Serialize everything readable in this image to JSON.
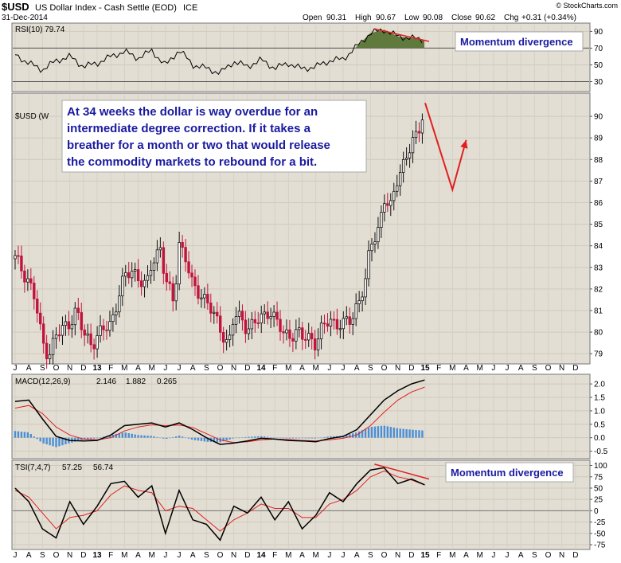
{
  "header": {
    "symbol": "$USD",
    "name": "US Dollar Index - Cash Settle (EOD)",
    "exchange": "ICE",
    "date": "31-Dec-2014",
    "open_label": "Open",
    "open": "90.31",
    "high_label": "High",
    "high": "90.67",
    "low_label": "Low",
    "low": "90.08",
    "close_label": "Close",
    "close": "90.62",
    "chg_label": "Chg",
    "chg": "+0.31 (+0.34%)",
    "brand": "© StockCharts.com"
  },
  "annotations": {
    "main_text": [
      "At 34 weeks the dollar is way overdue for an",
      "intermediate degree correction. If it takes a",
      "breather for a month or two that would release",
      "the commodity markets to rebound for a bit."
    ],
    "rsi_divergence": "Momentum divergence",
    "tsi_divergence": "Momentum divergence"
  },
  "colors": {
    "panel_bg": "#e3ded3",
    "up": "#111111",
    "down": "#c0143c",
    "accent_red": "#e02020",
    "macd_line": "#000000",
    "signal_line": "#e02020",
    "histogram": "#4a8fd6",
    "rsi_fill": "#5f7a3c",
    "annotation_text": "#1a1aa0"
  },
  "chart_data": [
    {
      "panel": "price",
      "type": "candlestick",
      "title": "$USD (Weekly)",
      "legend_label": "$USD (W",
      "frequency": "weekly",
      "x_start": "2012-07",
      "x_end": "2015-01",
      "ylim": [
        78.6,
        91.0
      ],
      "yticks": [
        "79",
        "80",
        "81",
        "82",
        "83",
        "84",
        "85",
        "86",
        "87",
        "88",
        "89",
        "90"
      ],
      "close_path": [
        [
          "2012-07",
          83.4
        ],
        [
          "2012-08",
          82.4
        ],
        [
          "2012-08-15",
          81.5
        ],
        [
          "2012-09",
          79.5
        ],
        [
          "2012-09-15",
          79.0
        ],
        [
          "2012-10",
          79.8
        ],
        [
          "2012-11",
          80.5
        ],
        [
          "2012-11-15",
          81.0
        ],
        [
          "2012-12",
          79.9
        ],
        [
          "2012-12-20",
          79.5
        ],
        [
          "2013-01",
          79.8
        ],
        [
          "2013-02",
          80.4
        ],
        [
          "2013-02-20",
          81.8
        ],
        [
          "2013-03",
          82.5
        ],
        [
          "2013-03-20",
          82.9
        ],
        [
          "2013-04",
          82.6
        ],
        [
          "2013-04-20",
          82.0
        ],
        [
          "2013-05",
          83.2
        ],
        [
          "2013-05-20",
          84.0
        ],
        [
          "2013-06",
          82.4
        ],
        [
          "2013-06-20",
          81.3
        ],
        [
          "2013-07",
          84.2
        ],
        [
          "2013-07-15",
          83.5
        ],
        [
          "2013-08",
          82.0
        ],
        [
          "2013-08-20",
          81.8
        ],
        [
          "2013-09",
          81.5
        ],
        [
          "2013-09-20",
          80.6
        ],
        [
          "2013-10",
          80.2
        ],
        [
          "2013-10-20",
          79.4
        ],
        [
          "2013-11",
          80.7
        ],
        [
          "2013-11-20",
          80.6
        ],
        [
          "2013-12",
          80.2
        ],
        [
          "2014-01",
          80.6
        ],
        [
          "2014-01-20",
          81.1
        ],
        [
          "2014-02",
          80.6
        ],
        [
          "2014-02-20",
          79.9
        ],
        [
          "2014-03",
          79.9
        ],
        [
          "2014-03-20",
          80.0
        ],
        [
          "2014-04",
          79.7
        ],
        [
          "2014-04-20",
          79.8
        ],
        [
          "2014-05",
          79.5
        ],
        [
          "2014-05-15",
          80.1
        ],
        [
          "2014-06",
          80.6
        ],
        [
          "2014-06-20",
          80.4
        ],
        [
          "2014-07",
          80.3
        ],
        [
          "2014-07-20",
          80.6
        ],
        [
          "2014-08",
          81.3
        ],
        [
          "2014-08-20",
          82.2
        ],
        [
          "2014-09",
          84.0
        ],
        [
          "2014-09-20",
          84.9
        ],
        [
          "2014-10",
          86.2
        ],
        [
          "2014-10-15",
          85.6
        ],
        [
          "2014-11",
          87.3
        ],
        [
          "2014-11-15",
          87.9
        ],
        [
          "2014-12",
          88.6
        ],
        [
          "2014-12-15",
          89.2
        ],
        [
          "2014-12-31",
          90.62
        ]
      ],
      "arrow_path": [
        [
          "2015-01",
          90.62
        ],
        [
          "2015-03",
          86.6
        ],
        [
          "2015-04",
          88.9
        ]
      ]
    },
    {
      "panel": "rsi",
      "type": "line",
      "label": "RSI(10) 79.74",
      "ylim": [
        20,
        98
      ],
      "yticks": [
        "90",
        "70",
        "50",
        "30"
      ],
      "levels": [
        70,
        30
      ],
      "values_path": [
        [
          "2012-07",
          62
        ],
        [
          "2012-08",
          52
        ],
        [
          "2012-09",
          44
        ],
        [
          "2012-10",
          55
        ],
        [
          "2012-11",
          60
        ],
        [
          "2012-12",
          48
        ],
        [
          "2013-01",
          52
        ],
        [
          "2013-02",
          60
        ],
        [
          "2013-03",
          66
        ],
        [
          "2013-04",
          58
        ],
        [
          "2013-05",
          67
        ],
        [
          "2013-06",
          49
        ],
        [
          "2013-07",
          68
        ],
        [
          "2013-08",
          50
        ],
        [
          "2013-09",
          46
        ],
        [
          "2013-10",
          40
        ],
        [
          "2013-11",
          54
        ],
        [
          "2013-12",
          48
        ],
        [
          "2014-01",
          56
        ],
        [
          "2014-02",
          46
        ],
        [
          "2014-03",
          52
        ],
        [
          "2014-04",
          45
        ],
        [
          "2014-05",
          48
        ],
        [
          "2014-06",
          55
        ],
        [
          "2014-07",
          57
        ],
        [
          "2014-08",
          72
        ],
        [
          "2014-09",
          88
        ],
        [
          "2014-10",
          92
        ],
        [
          "2014-11",
          84
        ],
        [
          "2014-12",
          82
        ],
        [
          "2014-12-31",
          79.74
        ]
      ]
    },
    {
      "panel": "macd",
      "type": "line",
      "label_prefix": "MACD(12,26,9)",
      "macd_value": "2.146",
      "signal_value": "1.882",
      "hist_value": "0.265",
      "ylim": [
        -0.72,
        2.3
      ],
      "yticks": [
        "2.0",
        "1.5",
        "1.0",
        "0.5",
        "0.0",
        "-0.5"
      ],
      "macd_path": [
        [
          "2012-07",
          1.35
        ],
        [
          "2012-08",
          1.4
        ],
        [
          "2012-09",
          0.7
        ],
        [
          "2012-10",
          0.05
        ],
        [
          "2012-11",
          -0.1
        ],
        [
          "2012-12",
          -0.12
        ],
        [
          "2013-01",
          -0.1
        ],
        [
          "2013-02",
          0.1
        ],
        [
          "2013-03",
          0.45
        ],
        [
          "2013-04",
          0.5
        ],
        [
          "2013-05",
          0.55
        ],
        [
          "2013-06",
          0.4
        ],
        [
          "2013-07",
          0.55
        ],
        [
          "2013-08",
          0.3
        ],
        [
          "2013-09",
          0.0
        ],
        [
          "2013-10",
          -0.25
        ],
        [
          "2013-11",
          -0.2
        ],
        [
          "2013-12",
          -0.12
        ],
        [
          "2014-01",
          -0.02
        ],
        [
          "2014-02",
          -0.05
        ],
        [
          "2014-03",
          -0.1
        ],
        [
          "2014-04",
          -0.12
        ],
        [
          "2014-05",
          -0.15
        ],
        [
          "2014-06",
          -0.03
        ],
        [
          "2014-07",
          0.05
        ],
        [
          "2014-08",
          0.3
        ],
        [
          "2014-09",
          0.85
        ],
        [
          "2014-10",
          1.4
        ],
        [
          "2014-11",
          1.75
        ],
        [
          "2014-12",
          2.0
        ],
        [
          "2014-12-31",
          2.146
        ]
      ],
      "signal_path": [
        [
          "2012-07",
          1.1
        ],
        [
          "2012-08",
          1.2
        ],
        [
          "2012-09",
          0.9
        ],
        [
          "2012-10",
          0.4
        ],
        [
          "2012-11",
          0.1
        ],
        [
          "2012-12",
          -0.05
        ],
        [
          "2013-01",
          -0.08
        ],
        [
          "2013-02",
          0.0
        ],
        [
          "2013-03",
          0.25
        ],
        [
          "2013-04",
          0.4
        ],
        [
          "2013-05",
          0.48
        ],
        [
          "2013-06",
          0.45
        ],
        [
          "2013-07",
          0.47
        ],
        [
          "2013-08",
          0.38
        ],
        [
          "2013-09",
          0.15
        ],
        [
          "2013-10",
          -0.08
        ],
        [
          "2013-11",
          -0.18
        ],
        [
          "2013-12",
          -0.15
        ],
        [
          "2014-01",
          -0.08
        ],
        [
          "2014-02",
          -0.05
        ],
        [
          "2014-03",
          -0.07
        ],
        [
          "2014-04",
          -0.1
        ],
        [
          "2014-05",
          -0.12
        ],
        [
          "2014-06",
          -0.08
        ],
        [
          "2014-07",
          -0.02
        ],
        [
          "2014-08",
          0.1
        ],
        [
          "2014-09",
          0.45
        ],
        [
          "2014-10",
          0.95
        ],
        [
          "2014-11",
          1.4
        ],
        [
          "2014-12",
          1.7
        ],
        [
          "2014-12-31",
          1.882
        ]
      ]
    },
    {
      "panel": "tsi",
      "type": "line",
      "label_prefix": "TSI(7,4,7)",
      "tsi_value": "57.25",
      "signal_value": "56.74",
      "ylim": [
        -82,
        108
      ],
      "yticks": [
        "100",
        "75",
        "50",
        "25",
        "0",
        "-25",
        "-50",
        "-75"
      ],
      "tsi_path": [
        [
          "2012-07",
          50
        ],
        [
          "2012-08",
          20
        ],
        [
          "2012-09",
          -40
        ],
        [
          "2012-10",
          -60
        ],
        [
          "2012-11",
          20
        ],
        [
          "2012-12",
          -30
        ],
        [
          "2013-01",
          10
        ],
        [
          "2013-02",
          60
        ],
        [
          "2013-03",
          65
        ],
        [
          "2013-04",
          30
        ],
        [
          "2013-05",
          55
        ],
        [
          "2013-06",
          -50
        ],
        [
          "2013-07",
          45
        ],
        [
          "2013-08",
          -20
        ],
        [
          "2013-09",
          -30
        ],
        [
          "2013-10",
          -65
        ],
        [
          "2013-11",
          10
        ],
        [
          "2013-12",
          -5
        ],
        [
          "2014-01",
          30
        ],
        [
          "2014-02",
          -20
        ],
        [
          "2014-03",
          20
        ],
        [
          "2014-04",
          -40
        ],
        [
          "2014-05",
          -10
        ],
        [
          "2014-06",
          40
        ],
        [
          "2014-07",
          20
        ],
        [
          "2014-08",
          60
        ],
        [
          "2014-09",
          90
        ],
        [
          "2014-10",
          95
        ],
        [
          "2014-11",
          60
        ],
        [
          "2014-12",
          70
        ],
        [
          "2014-12-31",
          57.25
        ]
      ],
      "signal_path": [
        [
          "2012-07",
          45
        ],
        [
          "2012-08",
          30
        ],
        [
          "2012-09",
          -5
        ],
        [
          "2012-10",
          -40
        ],
        [
          "2012-11",
          -15
        ],
        [
          "2012-12",
          -10
        ],
        [
          "2013-01",
          0
        ],
        [
          "2013-02",
          35
        ],
        [
          "2013-03",
          55
        ],
        [
          "2013-04",
          45
        ],
        [
          "2013-05",
          40
        ],
        [
          "2013-06",
          0
        ],
        [
          "2013-07",
          10
        ],
        [
          "2013-08",
          5
        ],
        [
          "2013-09",
          -20
        ],
        [
          "2013-10",
          -45
        ],
        [
          "2013-11",
          -20
        ],
        [
          "2013-12",
          -5
        ],
        [
          "2014-01",
          15
        ],
        [
          "2014-02",
          5
        ],
        [
          "2014-03",
          5
        ],
        [
          "2014-04",
          -15
        ],
        [
          "2014-05",
          -15
        ],
        [
          "2014-06",
          15
        ],
        [
          "2014-07",
          25
        ],
        [
          "2014-08",
          45
        ],
        [
          "2014-09",
          75
        ],
        [
          "2014-10",
          88
        ],
        [
          "2014-11",
          75
        ],
        [
          "2014-12",
          68
        ],
        [
          "2014-12-31",
          56.74
        ]
      ]
    }
  ],
  "x_axis_labels": [
    "J",
    "A",
    "S",
    "O",
    "N",
    "D",
    "13",
    "F",
    "M",
    "A",
    "M",
    "J",
    "J",
    "A",
    "S",
    "O",
    "N",
    "D",
    "14",
    "F",
    "M",
    "A",
    "M",
    "J",
    "J",
    "A",
    "S",
    "O",
    "N",
    "D",
    "15",
    "F",
    "M",
    "A",
    "M",
    "J",
    "J",
    "A",
    "S",
    "O",
    "N",
    "D"
  ]
}
